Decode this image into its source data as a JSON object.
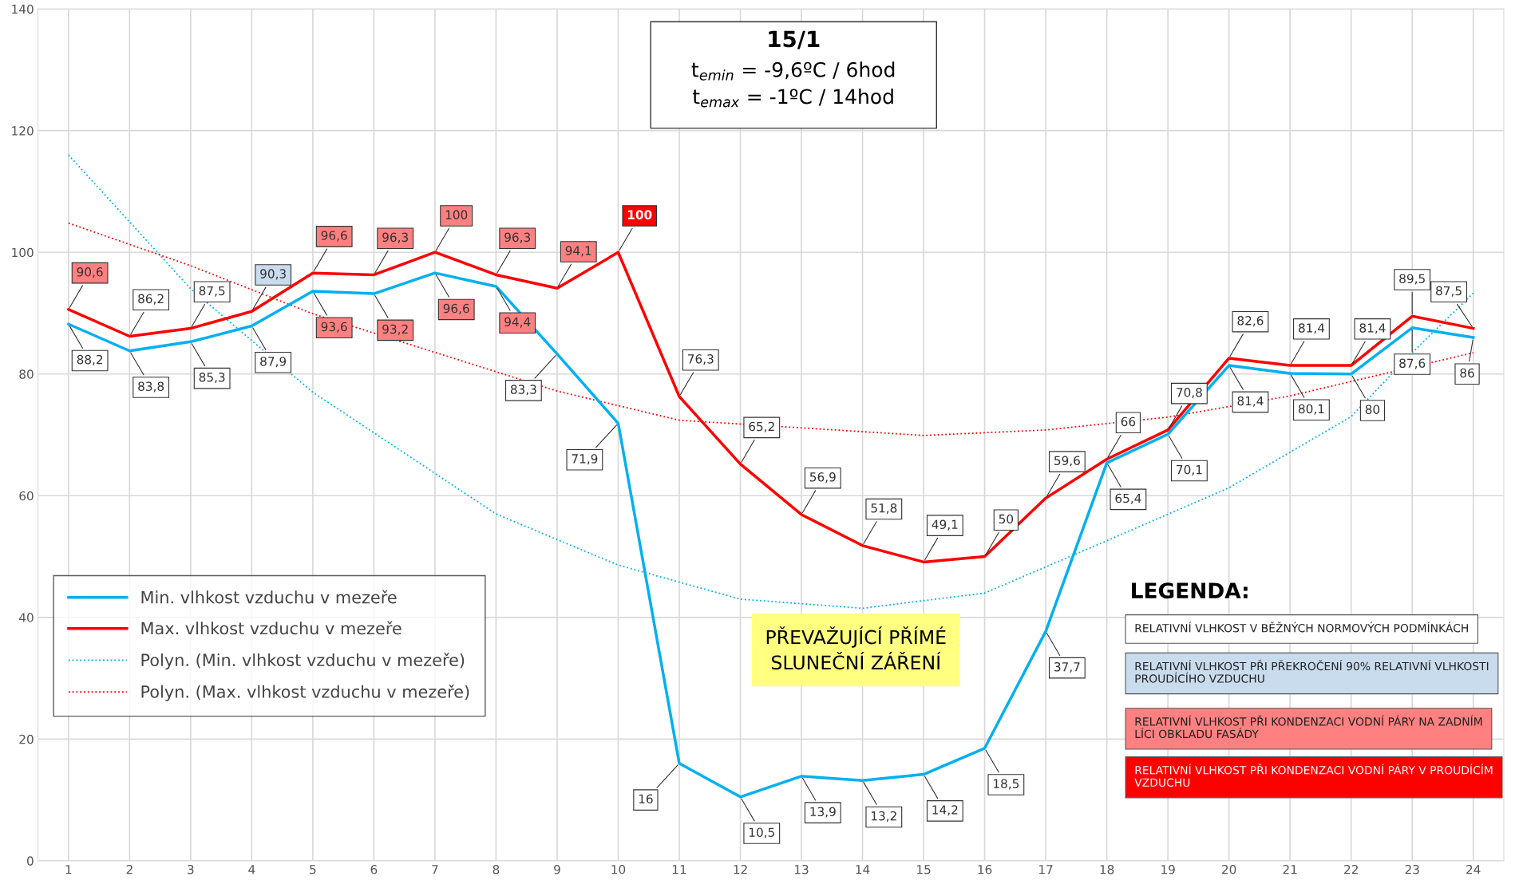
{
  "chart_data": {
    "type": "line",
    "title": "15/1",
    "subtitle": "t$_{emin}$ = -9,6ºC / 6hod\nt$_{emax}$ = -1ºC / 14hod",
    "x": [
      1,
      2,
      3,
      4,
      5,
      6,
      7,
      8,
      9,
      10,
      11,
      12,
      13,
      14,
      15,
      16,
      17,
      18,
      19,
      20,
      21,
      22,
      23,
      24
    ],
    "xlim": [
      0.5,
      24.5
    ],
    "xticks": [
      1,
      2,
      3,
      4,
      5,
      6,
      7,
      8,
      9,
      10,
      11,
      12,
      13,
      14,
      15,
      16,
      17,
      18,
      19,
      20,
      21,
      22,
      23,
      24
    ],
    "ylim": [
      0,
      140
    ],
    "yticks": [
      0,
      20,
      40,
      60,
      80,
      100,
      120,
      140
    ],
    "grid": true,
    "legend": "bottom left",
    "line_style": "solid",
    "series": [
      {
        "name": "Min. vlhkost vzduchu v mezeře",
        "color": "#00b0f0",
        "values": [
          88.2,
          83.8,
          85.3,
          87.9,
          93.6,
          93.2,
          96.6,
          94.4,
          83.3,
          71.9,
          16,
          10.5,
          13.9,
          13.2,
          14.2,
          18.5,
          37.7,
          65.4,
          70.1,
          81.4,
          80.1,
          80,
          87.6,
          86
        ],
        "value_labels": [
          "88,2",
          "83,8",
          "85,3",
          "87,9",
          "93,6",
          "93,2",
          "96,6",
          "94,4",
          "83,3",
          "71,9",
          "16",
          "10,5",
          "13,9",
          "13,2",
          "14,2",
          "18,5",
          "37,7",
          "65,4",
          "70,1",
          "81,4",
          "80,1",
          "80",
          "87,6",
          "86"
        ]
      },
      {
        "name": "Max. vlhkost vzduchu v mezeře",
        "color": "#ff0000",
        "values": [
          90.6,
          86.2,
          87.5,
          90.3,
          96.6,
          96.3,
          100,
          96.3,
          94.1,
          100,
          76.3,
          65.2,
          56.9,
          51.8,
          49.1,
          50,
          59.6,
          66,
          70.8,
          82.6,
          81.4,
          81.4,
          89.5,
          87.5
        ],
        "value_labels": [
          "90,6",
          "86,2",
          "87,5",
          "90,3",
          "96,6",
          "96,3",
          "100",
          "96,3",
          "94,1",
          "100",
          "76,3",
          "65,2",
          "56,9",
          "51,8",
          "49,1",
          "50",
          "59,6",
          "66",
          "70,8",
          "82,6",
          "81,4",
          "81,4",
          "89,5",
          "87,5"
        ]
      },
      {
        "name": "Polyn. (Min. vlhkost vzduchu v mezeře)",
        "color": "#00b0f0",
        "line_style": "dotted",
        "x": [
          1,
          3,
          5,
          8,
          10,
          12,
          14,
          16,
          18,
          20,
          22,
          23,
          24
        ],
        "values": [
          116,
          94,
          77,
          57,
          48.6,
          43,
          41.5,
          44,
          52.6,
          61.3,
          73,
          83.5,
          93.3
        ]
      },
      {
        "name": "Polyn. (Max. vlhkost vzduchu v mezeře)",
        "color": "#ff0000",
        "line_style": "dotted",
        "x": [
          1,
          3,
          5,
          9,
          11,
          15,
          17,
          19,
          21,
          24
        ],
        "values": [
          104.8,
          97.8,
          89.9,
          77.2,
          72.4,
          69.9,
          70.8,
          72.9,
          76.4,
          83.5
        ]
      }
    ],
    "annotations": [
      "PŘEVAŽUJÍCÍ PŘÍMÉ\nSLUNEČNÍ ZÁŘENÍ",
      "LEGENDA:",
      "RELATIVNÍ VLHKOST V BĚŽNÝCH NORMOVÝCH PODMÍNKÁCH",
      "RELATIVNÍ VLHKOST PŘI PŘEKROČENÍ 90% RELATIVNÍ VLHKOSTI\nPROUDÍCÍHO VZDUCHU",
      "RELATIVNÍ VLHKOST PŘI KONDENZACI VODNÍ PÁRY NA ZADNÍM\nLÍCI OBKLADU FASÁDY",
      "RELATIVNÍ VLHKOST PŘI KONDENZACI VODNÍ PÁRY V PROUDÍCÍM\nVZDUCHU"
    ]
  }
}
